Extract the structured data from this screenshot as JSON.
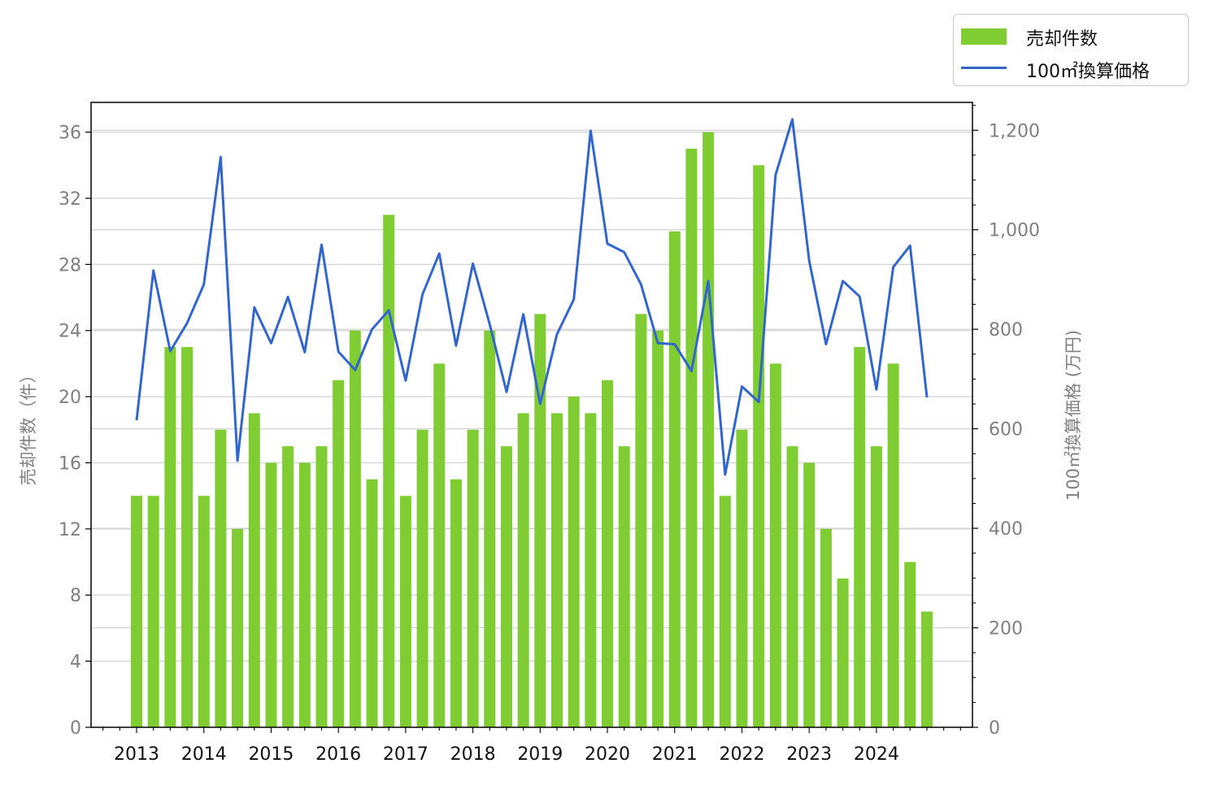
{
  "colors": {
    "bar": "#7fcc33",
    "line": "#3366cc",
    "axis_text": "#808080",
    "grid": "#d3d3d3",
    "frame": "#000000"
  },
  "legend": {
    "bar_label": "売却件数",
    "line_label": "100㎡換算価格"
  },
  "axes": {
    "left_label": "売却件数（件）",
    "right_label": "100㎡換算価格 (万円)",
    "x_ticks": [
      "2013",
      "2014",
      "2015",
      "2016",
      "2017",
      "2018",
      "2019",
      "2020",
      "2021",
      "2022",
      "2023",
      "2024"
    ],
    "left_ticks": [
      "0",
      "4",
      "8",
      "12",
      "16",
      "20",
      "24",
      "28",
      "32",
      "36"
    ],
    "right_ticks": [
      "0",
      "200",
      "400",
      "600",
      "800",
      "1,000",
      "1,200"
    ]
  },
  "chart_data": {
    "type": "bar",
    "x_start": "2013 Q1",
    "x_step": "quarter",
    "left_ylim": [
      0,
      37.8
    ],
    "right_ylim": [
      0,
      1256
    ],
    "grid": "horizontal",
    "legend_position": "top-right, outside plot",
    "series": [
      {
        "name": "売却件数",
        "type": "bar",
        "axis": "left",
        "values": [
          14,
          14,
          23,
          23,
          14,
          18,
          12,
          19,
          16,
          17,
          16,
          17,
          21,
          24,
          15,
          31,
          14,
          18,
          22,
          15,
          18,
          24,
          17,
          19,
          25,
          19,
          20,
          19,
          21,
          17,
          25,
          24,
          30,
          35,
          36,
          14,
          18,
          34,
          22,
          17,
          16,
          12,
          9,
          23,
          17,
          22,
          10,
          7
        ]
      },
      {
        "name": "100㎡換算価格",
        "type": "line",
        "axis": "right",
        "values": [
          617,
          918,
          756,
          812,
          890,
          1146,
          536,
          844,
          772,
          865,
          754,
          970,
          755,
          718,
          800,
          838,
          697,
          870,
          952,
          767,
          932,
          810,
          674,
          830,
          650,
          790,
          860,
          1199,
          972,
          955,
          890,
          772,
          770,
          716,
          897,
          508,
          685,
          654,
          1110,
          1222,
          938,
          770,
          897,
          866,
          679,
          925,
          968,
          663
        ]
      }
    ]
  }
}
